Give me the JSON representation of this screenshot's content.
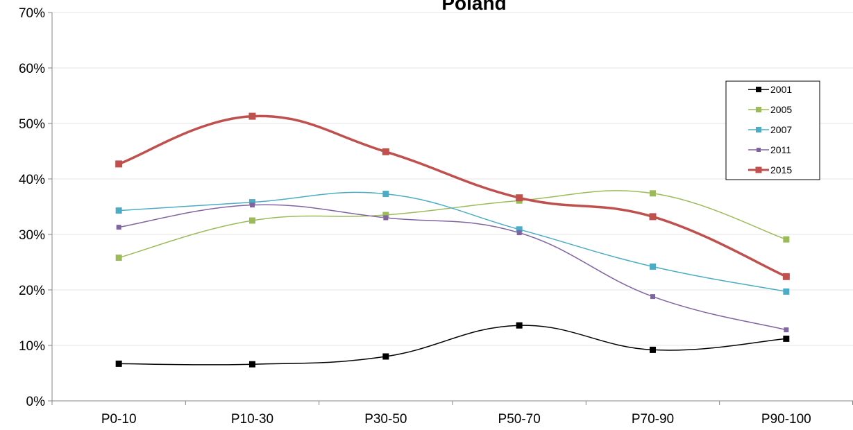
{
  "chart_data": {
    "type": "line",
    "title": "Poland",
    "xlabel": "",
    "ylabel": "",
    "categories": [
      "P0-10",
      "P10-30",
      "P30-50",
      "P50-70",
      "P70-90",
      "P90-100"
    ],
    "ylim": [
      0,
      70
    ],
    "y_ticks": [
      "0%",
      "10%",
      "20%",
      "30%",
      "40%",
      "50%",
      "60%",
      "70%"
    ],
    "grid": true,
    "legend_position": "top-right",
    "series": [
      {
        "name": "2001",
        "color": "#000000",
        "values": [
          6.7,
          6.6,
          8.0,
          13.6,
          9.2,
          11.2
        ]
      },
      {
        "name": "2005",
        "color": "#9bbb59",
        "values": [
          25.8,
          32.5,
          33.5,
          36.1,
          37.4,
          29.1
        ]
      },
      {
        "name": "2007",
        "color": "#4bacc6",
        "values": [
          34.3,
          35.8,
          37.3,
          30.9,
          24.2,
          19.7
        ]
      },
      {
        "name": "2011",
        "color": "#8064a2",
        "values": [
          31.3,
          35.3,
          33.0,
          30.3,
          18.8,
          12.8
        ]
      },
      {
        "name": "2015",
        "color": "#c0504d",
        "values": [
          42.7,
          51.3,
          44.9,
          36.6,
          33.2,
          22.4
        ]
      }
    ]
  }
}
